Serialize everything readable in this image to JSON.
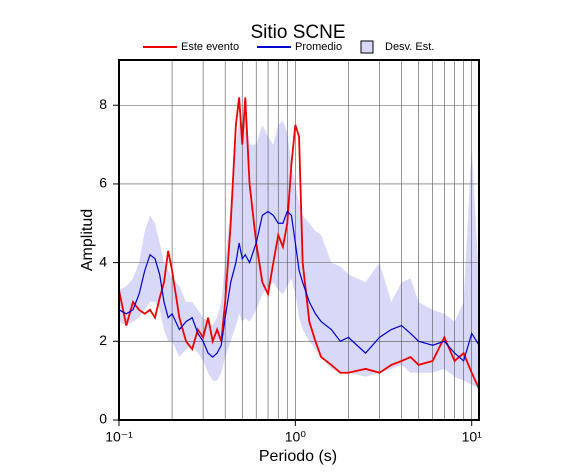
{
  "chart_data": {
    "type": "line",
    "title": "Sitio SCNE",
    "xlabel": "Periodo (s)",
    "ylabel": "Amplitud",
    "x": [
      0.1,
      0.11,
      0.12,
      0.13,
      0.14,
      0.15,
      0.16,
      0.17,
      0.18,
      0.19,
      0.2,
      0.22,
      0.24,
      0.26,
      0.28,
      0.3,
      0.32,
      0.34,
      0.36,
      0.38,
      0.4,
      0.43,
      0.46,
      0.48,
      0.5,
      0.52,
      0.55,
      0.6,
      0.65,
      0.7,
      0.75,
      0.8,
      0.85,
      0.9,
      0.95,
      1.0,
      1.05,
      1.1,
      1.2,
      1.3,
      1.4,
      1.6,
      1.8,
      2.0,
      2.5,
      3.0,
      3.5,
      4.0,
      4.5,
      5,
      6,
      7,
      8,
      9,
      10,
      11
    ],
    "series": [
      {
        "name": "Este evento",
        "color": "#ee0000",
        "values": [
          3.3,
          2.4,
          3.0,
          2.8,
          2.7,
          2.8,
          2.6,
          3.1,
          3.5,
          4.3,
          3.8,
          2.6,
          2.0,
          1.8,
          2.3,
          2.1,
          2.6,
          2.0,
          2.3,
          2.0,
          3.0,
          5.0,
          7.5,
          8.2,
          7.0,
          8.2,
          6.0,
          4.5,
          3.5,
          3.2,
          4.0,
          4.7,
          4.4,
          5.0,
          6.5,
          7.5,
          7.2,
          4.0,
          2.5,
          2.0,
          1.6,
          1.4,
          1.2,
          1.2,
          1.3,
          1.2,
          1.4,
          1.5,
          1.6,
          1.4,
          1.5,
          2.1,
          1.5,
          1.7,
          1.2,
          0.8
        ]
      },
      {
        "name": "Promedio",
        "color": "#0000cc",
        "values": [
          2.8,
          2.7,
          2.8,
          3.2,
          3.8,
          4.2,
          4.1,
          3.7,
          3.0,
          2.6,
          2.7,
          2.3,
          2.5,
          2.6,
          2.2,
          2.0,
          1.7,
          1.6,
          1.7,
          1.9,
          2.6,
          3.5,
          4.0,
          4.5,
          4.1,
          4.2,
          4.0,
          4.5,
          5.2,
          5.3,
          5.2,
          5.0,
          5.0,
          5.3,
          5.2,
          4.5,
          3.8,
          3.5,
          3.0,
          2.7,
          2.5,
          2.3,
          2.0,
          2.1,
          1.7,
          2.1,
          2.3,
          2.4,
          2.2,
          2.0,
          1.9,
          2.0,
          1.7,
          1.5,
          2.2,
          1.9
        ]
      },
      {
        "name": "Desv. Est.",
        "color": "#d8d8f8",
        "upper": [
          3.3,
          3.4,
          3.6,
          4.0,
          4.8,
          5.2,
          5.0,
          4.5,
          4.0,
          3.8,
          3.6,
          3.4,
          3.0,
          3.0,
          2.8,
          2.6,
          2.5,
          2.4,
          2.6,
          3.0,
          4.0,
          5.5,
          7.0,
          7.6,
          7.4,
          7.8,
          7.0,
          7.0,
          7.5,
          7.2,
          7.0,
          7.5,
          7.6,
          7.3,
          6.5,
          6.0,
          5.5,
          5.2,
          5.0,
          4.8,
          4.7,
          4.0,
          3.9,
          3.7,
          3.5,
          4.0,
          3.0,
          3.5,
          3.6,
          3.0,
          2.8,
          2.7,
          2.5,
          3.0,
          7.0,
          3.5
        ],
        "lower": [
          2.5,
          2.4,
          2.5,
          2.6,
          2.8,
          3.0,
          3.0,
          2.8,
          2.3,
          2.0,
          2.0,
          1.6,
          1.8,
          1.9,
          1.7,
          1.5,
          1.2,
          1.0,
          1.0,
          1.2,
          1.6,
          2.0,
          2.4,
          2.7,
          2.5,
          2.6,
          2.5,
          2.8,
          3.2,
          3.4,
          3.5,
          3.3,
          3.2,
          3.4,
          3.6,
          3.2,
          2.6,
          2.3,
          2.0,
          1.8,
          1.6,
          1.3,
          1.2,
          1.2,
          1.1,
          1.2,
          1.3,
          1.4,
          1.2,
          1.2,
          1.2,
          1.3,
          1.1,
          1.0,
          0.9,
          0.8
        ]
      }
    ],
    "xlog": true,
    "xlim": [
      0.1,
      11
    ],
    "xticks": [
      {
        "value": 0.1,
        "label": "10⁻¹"
      },
      {
        "value": 1,
        "label": "10⁰"
      },
      {
        "value": 10,
        "label": "10¹"
      }
    ],
    "ylim": [
      0,
      9.15
    ],
    "yticks": [
      0,
      2,
      4,
      6,
      8
    ],
    "grid": true
  }
}
